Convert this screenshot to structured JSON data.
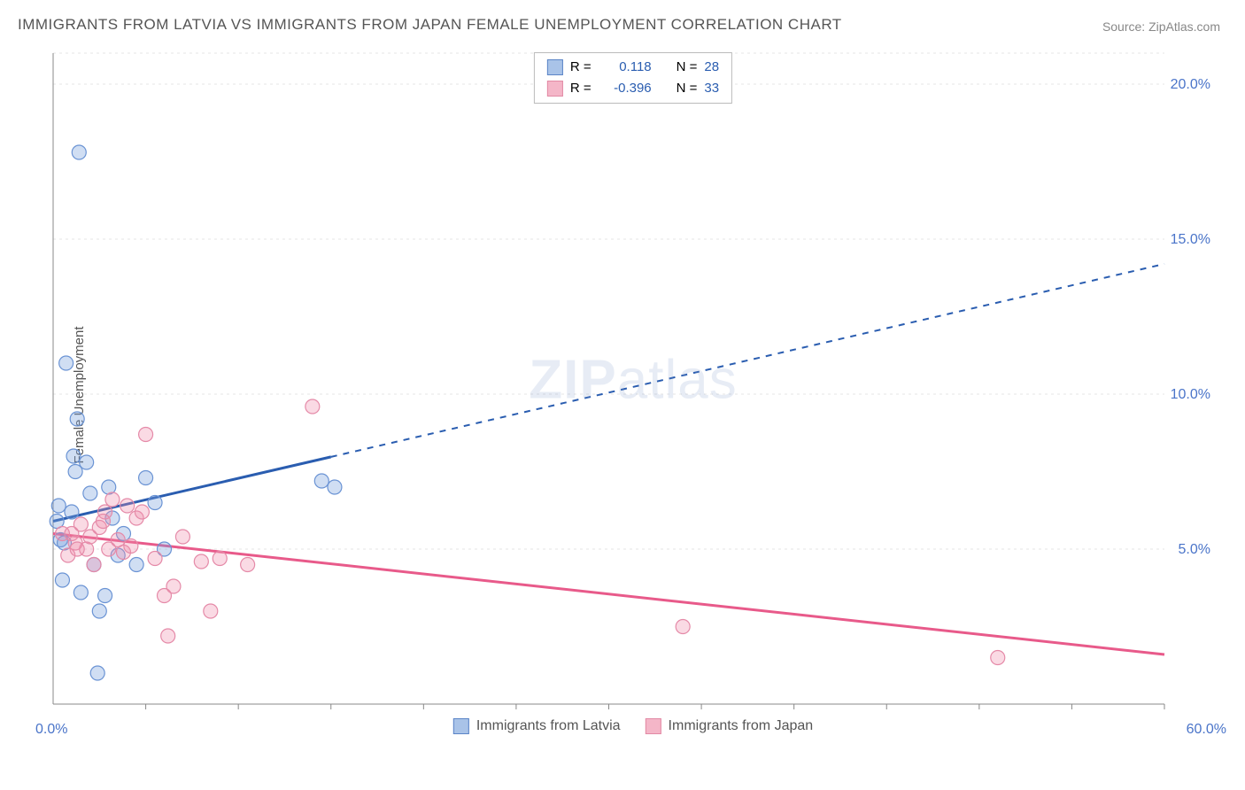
{
  "title": "IMMIGRANTS FROM LATVIA VS IMMIGRANTS FROM JAPAN FEMALE UNEMPLOYMENT CORRELATION CHART",
  "source": "Source: ZipAtlas.com",
  "ylabel": "Female Unemployment",
  "watermark_a": "ZIP",
  "watermark_b": "atlas",
  "chart": {
    "type": "scatter-regression",
    "background_color": "#ffffff",
    "grid_color": "#e5e5e5",
    "xlim": [
      0,
      60
    ],
    "ylim": [
      0,
      21
    ],
    "ytick_values": [
      5,
      10,
      15,
      20
    ],
    "ytick_labels": [
      "5.0%",
      "10.0%",
      "15.0%",
      "20.0%"
    ],
    "xtick_minor": [
      5,
      10,
      15,
      20,
      25,
      30,
      35,
      40,
      45,
      50,
      55,
      60
    ],
    "x_origin_label": "0.0%",
    "x_max_label": "60.0%",
    "marker_radius": 8,
    "marker_stroke_width": 1.2,
    "line_width": 3,
    "series": [
      {
        "name": "Immigrants from Latvia",
        "color_fill": "rgba(120,160,220,0.35)",
        "color_stroke": "#6a93d4",
        "line_color": "#2a5db0",
        "swatch_fill": "#a9c3e8",
        "swatch_border": "#5b85c7",
        "r_value": "0.118",
        "n_value": "28",
        "points": [
          [
            0.2,
            5.9
          ],
          [
            0.3,
            6.4
          ],
          [
            0.4,
            5.3
          ],
          [
            0.5,
            4.0
          ],
          [
            0.6,
            5.2
          ],
          [
            0.7,
            11.0
          ],
          [
            1.0,
            6.2
          ],
          [
            1.1,
            8.0
          ],
          [
            1.2,
            7.5
          ],
          [
            1.3,
            9.2
          ],
          [
            1.4,
            17.8
          ],
          [
            1.5,
            3.6
          ],
          [
            1.8,
            7.8
          ],
          [
            2.0,
            6.8
          ],
          [
            2.2,
            4.5
          ],
          [
            2.4,
            1.0
          ],
          [
            2.5,
            3.0
          ],
          [
            2.8,
            3.5
          ],
          [
            3.0,
            7.0
          ],
          [
            3.2,
            6.0
          ],
          [
            3.5,
            4.8
          ],
          [
            3.8,
            5.5
          ],
          [
            4.5,
            4.5
          ],
          [
            5.0,
            7.3
          ],
          [
            5.5,
            6.5
          ],
          [
            6.0,
            5.0
          ],
          [
            14.5,
            7.2
          ],
          [
            15.2,
            7.0
          ]
        ],
        "regression": {
          "x1": 0,
          "y1": 5.9,
          "x2": 60,
          "y2": 14.2,
          "solid_to_x": 15
        }
      },
      {
        "name": "Immigrants from Japan",
        "color_fill": "rgba(240,140,170,0.32)",
        "color_stroke": "#e58aa8",
        "line_color": "#e85a8a",
        "swatch_fill": "#f4b6c8",
        "swatch_border": "#e28aa5",
        "r_value": "-0.396",
        "n_value": "33",
        "points": [
          [
            0.5,
            5.5
          ],
          [
            0.8,
            4.8
          ],
          [
            1.0,
            5.5
          ],
          [
            1.2,
            5.2
          ],
          [
            1.5,
            5.8
          ],
          [
            1.8,
            5.0
          ],
          [
            2.0,
            5.4
          ],
          [
            2.2,
            4.5
          ],
          [
            2.5,
            5.7
          ],
          [
            2.8,
            6.2
          ],
          [
            3.0,
            5.0
          ],
          [
            3.2,
            6.6
          ],
          [
            3.5,
            5.3
          ],
          [
            3.8,
            4.9
          ],
          [
            4.0,
            6.4
          ],
          [
            4.2,
            5.1
          ],
          [
            4.5,
            6.0
          ],
          [
            5.0,
            8.7
          ],
          [
            5.5,
            4.7
          ],
          [
            6.0,
            3.5
          ],
          [
            6.2,
            2.2
          ],
          [
            6.5,
            3.8
          ],
          [
            7.0,
            5.4
          ],
          [
            8.0,
            4.6
          ],
          [
            8.5,
            3.0
          ],
          [
            9.0,
            4.7
          ],
          [
            10.5,
            4.5
          ],
          [
            14.0,
            9.6
          ],
          [
            34.0,
            2.5
          ],
          [
            51.0,
            1.5
          ],
          [
            1.3,
            5.0
          ],
          [
            2.7,
            5.9
          ],
          [
            4.8,
            6.2
          ]
        ],
        "regression": {
          "x1": 0,
          "y1": 5.5,
          "x2": 60,
          "y2": 1.6,
          "solid_to_x": 60
        }
      }
    ]
  },
  "legend_top_prefix_r": "R =",
  "legend_top_prefix_n": "N ="
}
